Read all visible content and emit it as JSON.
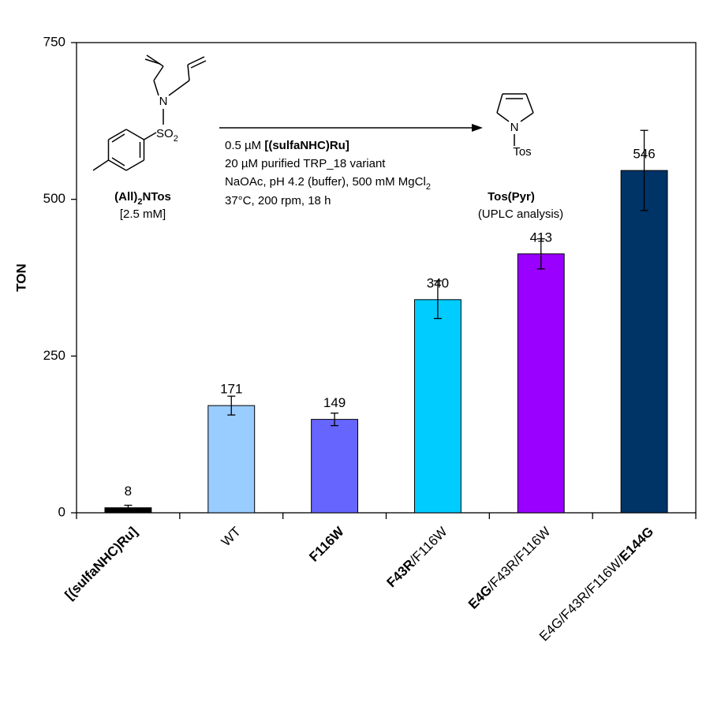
{
  "chart_data": {
    "type": "bar",
    "y_label": "TON",
    "categories": [
      [
        {
          "text": "[(sulfaNHC)Ru]",
          "bold": true
        }
      ],
      [
        {
          "text": "WT",
          "bold": false
        }
      ],
      [
        {
          "text": "F116W",
          "bold": true
        }
      ],
      [
        {
          "text": "F43R",
          "bold": true
        },
        {
          "text": "/F116W",
          "bold": false
        }
      ],
      [
        {
          "text": "E4G",
          "bold": true
        },
        {
          "text": "/F43R/F116W",
          "bold": false
        }
      ],
      [
        {
          "text": "E4G/F43R/F116W/",
          "bold": false
        },
        {
          "text": "E144G",
          "bold": true
        }
      ]
    ],
    "values": [
      8,
      171,
      149,
      340,
      413,
      546
    ],
    "errors": [
      4,
      15,
      10,
      30,
      24,
      64
    ],
    "colors": [
      "#000000",
      "#99ccff",
      "#6666ff",
      "#00ccff",
      "#9900ff",
      "#003366"
    ],
    "ylim": [
      0,
      750
    ],
    "yticks": [
      0,
      250,
      500,
      750
    ],
    "scheme": [
      [
        {
          "text": "N"
        }
      ],
      [
        {
          "text": "SO"
        },
        {
          "text": "2",
          "sub": true
        }
      ],
      [
        {
          "text": "(All)",
          "bold": true
        },
        {
          "text": "2",
          "bold": true,
          "sub": true
        },
        {
          "text": "NTos",
          "bold": true
        }
      ],
      [
        {
          "text": "[2.5 mM]"
        }
      ],
      [
        {
          "text": "0.5 µM "
        },
        {
          "text": "[(sulfaNHC)Ru]",
          "bold": true
        }
      ],
      [
        {
          "text": "20 µM purified TRP_18 variant"
        }
      ],
      [
        {
          "text": "NaOAc, pH 4.2 (buffer), 500 mM MgCl"
        },
        {
          "text": "2",
          "sub": true
        }
      ],
      [
        {
          "text": "37°C, 200 rpm, 18 h"
        }
      ],
      [
        {
          "text": "N"
        }
      ],
      [
        {
          "text": "Tos"
        }
      ],
      [
        {
          "text": "Tos(Pyr)",
          "bold": true
        }
      ],
      [
        {
          "text": "(UPLC analysis)"
        }
      ]
    ]
  }
}
